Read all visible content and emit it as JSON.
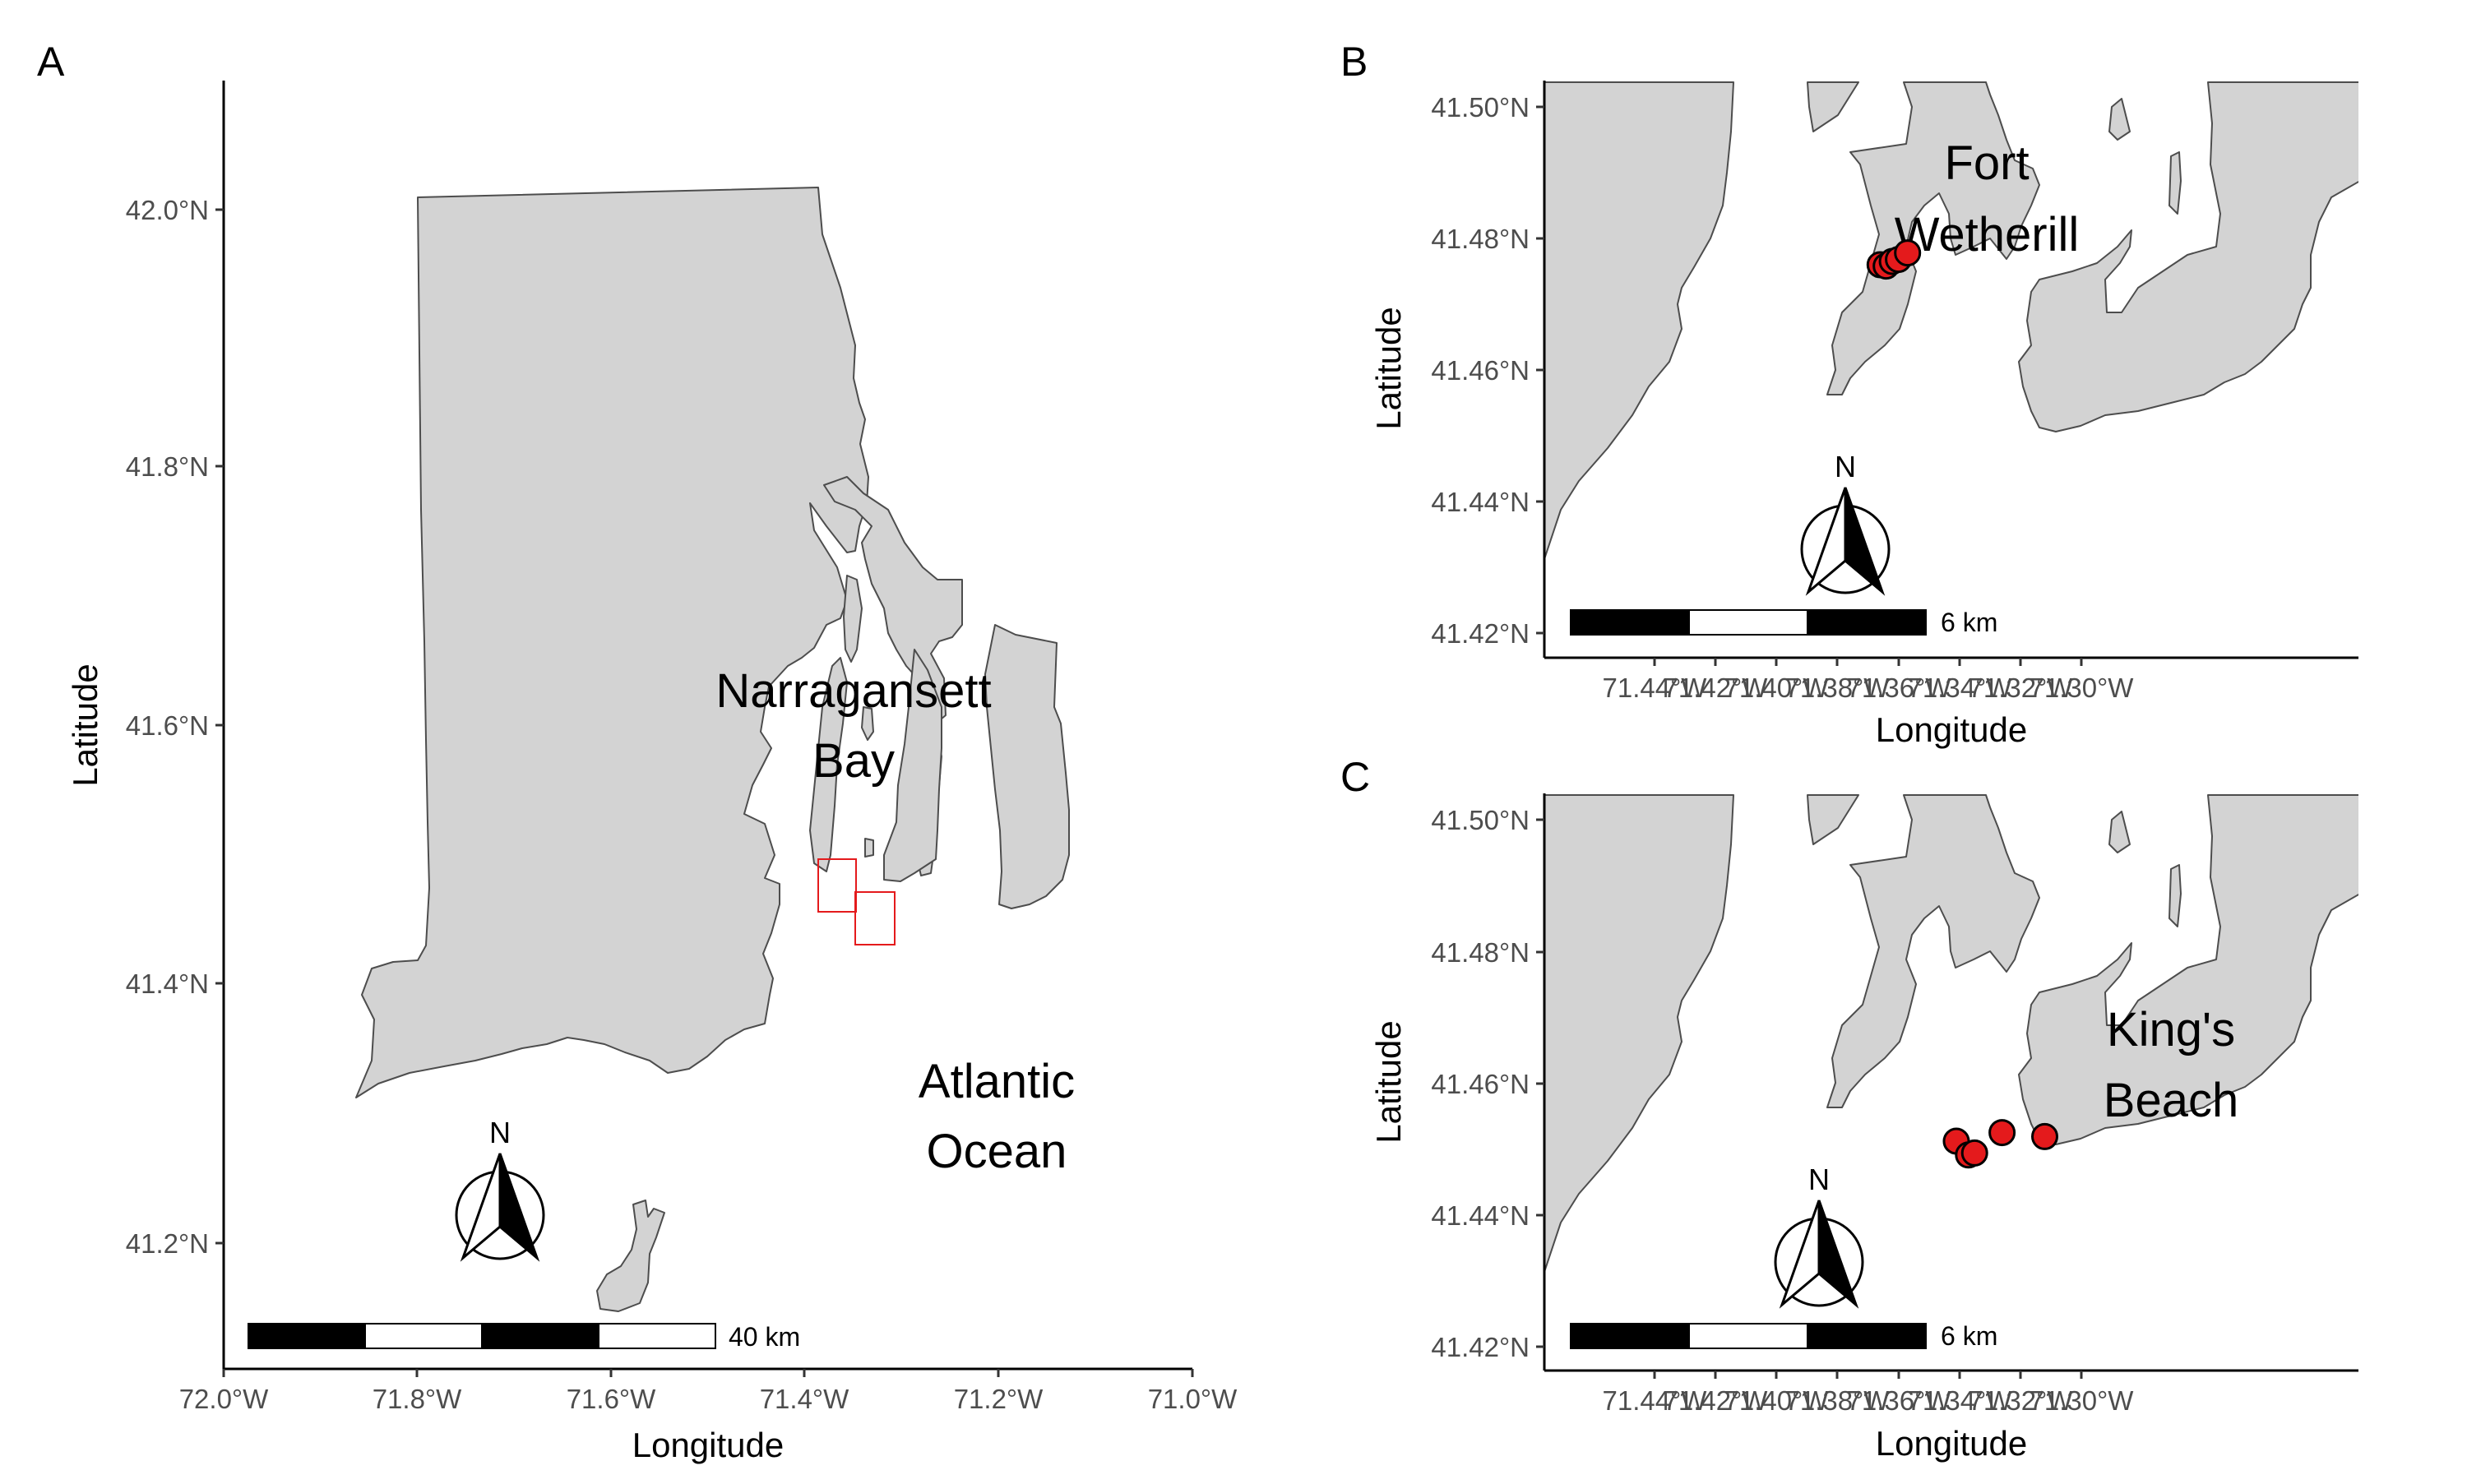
{
  "colors": {
    "land": "#d3d3d3",
    "land_outline": "#4d4d4d",
    "water_background": "#ffffff",
    "site_marker": "#e41a1c",
    "inset_box": "#e41a1c",
    "tick_text": "#4d4d4d"
  },
  "icons": {
    "north_arrow": "north-arrow-icon",
    "scale_bar": "scale-bar"
  },
  "panels": [
    {
      "id": "A",
      "tag": "A",
      "xlabel": "Longitude",
      "ylabel": "Latitude",
      "x_ticks": [
        "72.0°W",
        "71.8°W",
        "71.6°W",
        "71.4°W",
        "71.2°W",
        "71.0°W"
      ],
      "y_ticks": [
        "42.0°N",
        "41.8°N",
        "41.6°N",
        "41.4°N",
        "41.2°N"
      ],
      "labels": [
        {
          "lines": [
            "Narragansett",
            "Bay"
          ]
        },
        {
          "lines": [
            "Atlantic",
            "Ocean"
          ]
        }
      ],
      "north": "N",
      "scale_label": "40 km"
    },
    {
      "id": "B",
      "tag": "B",
      "xlabel": "Longitude",
      "ylabel": "Latitude",
      "x_ticks": [
        "71.44°W",
        "71.42°W",
        "71.40°W",
        "71.38°W",
        "71.36°W",
        "71.34°W",
        "71.32°W",
        "71.30°W"
      ],
      "y_ticks": [
        "41.50°N",
        "41.48°N",
        "41.46°N",
        "41.44°N",
        "41.42°N"
      ],
      "labels": [
        {
          "lines": [
            "Fort",
            "Wetherill"
          ]
        }
      ],
      "north": "N",
      "scale_label": "6 km"
    },
    {
      "id": "C",
      "tag": "C",
      "xlabel": "Longitude",
      "ylabel": "Latitude",
      "x_ticks": [
        "71.44°W",
        "71.42°W",
        "71.40°W",
        "71.38°W",
        "71.36°W",
        "71.34°W",
        "71.32°W",
        "71.30°W"
      ],
      "y_ticks": [
        "41.50°N",
        "41.48°N",
        "41.46°N",
        "41.44°N",
        "41.42°N"
      ],
      "labels": [
        {
          "lines": [
            "King's",
            "Beach"
          ]
        }
      ],
      "north": "N",
      "scale_label": "6 km"
    }
  ],
  "sites": {
    "fort_wetherill": [
      {
        "lon": -71.366,
        "lat": 41.476
      },
      {
        "lon": -71.364,
        "lat": 41.4758
      },
      {
        "lon": -71.362,
        "lat": 41.4765
      },
      {
        "lon": -71.36,
        "lat": 41.4768
      },
      {
        "lon": -71.357,
        "lat": 41.4778
      }
    ],
    "kings_beach": [
      {
        "lon": -71.341,
        "lat": 41.4512
      },
      {
        "lon": -71.337,
        "lat": 41.4491
      },
      {
        "lon": -71.335,
        "lat": 41.4494
      },
      {
        "lon": -71.326,
        "lat": 41.4525
      },
      {
        "lon": -71.312,
        "lat": 41.4519
      }
    ]
  }
}
